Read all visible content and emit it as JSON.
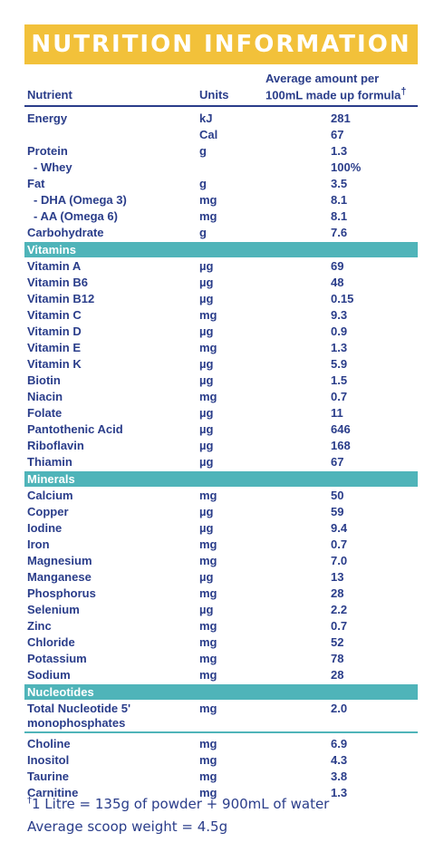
{
  "title": "NUTRITION INFORMATION",
  "header": {
    "nutrient": "Nutrient",
    "units": "Units",
    "amount_line1": "Average amount per",
    "amount_line2": "100mL made up formula",
    "amount_mark": "†"
  },
  "rows_main": [
    {
      "name": "Energy",
      "unit": "kJ",
      "value": "281"
    },
    {
      "name": "",
      "unit": "Cal",
      "value": "67"
    },
    {
      "name": "Protein",
      "unit": "g",
      "value": "1.3"
    },
    {
      "name": "- Whey",
      "unit": "",
      "value": "100%"
    },
    {
      "name": "Fat",
      "unit": "g",
      "value": "3.5"
    },
    {
      "name": "- DHA (Omega 3)",
      "unit": "mg",
      "value": "8.1"
    },
    {
      "name": "- AA (Omega 6)",
      "unit": "mg",
      "value": "8.1"
    },
    {
      "name": "Carbohydrate",
      "unit": "g",
      "value": "7.6"
    }
  ],
  "vitamins_label": "Vitamins",
  "vitamins": [
    {
      "name": "Vitamin A",
      "unit": "µg",
      "value": "69"
    },
    {
      "name": "Vitamin B6",
      "unit": "µg",
      "value": "48"
    },
    {
      "name": "Vitamin B12",
      "unit": "µg",
      "value": "0.15"
    },
    {
      "name": "Vitamin C",
      "unit": "mg",
      "value": "9.3"
    },
    {
      "name": "Vitamin D",
      "unit": "µg",
      "value": "0.9"
    },
    {
      "name": "Vitamin E",
      "unit": "mg",
      "value": "1.3"
    },
    {
      "name": "Vitamin K",
      "unit": "µg",
      "value": "5.9"
    },
    {
      "name": "Biotin",
      "unit": "µg",
      "value": "1.5"
    },
    {
      "name": "Niacin",
      "unit": "mg",
      "value": "0.7"
    },
    {
      "name": "Folate",
      "unit": "µg",
      "value": "11"
    },
    {
      "name": "Pantothenic Acid",
      "unit": "µg",
      "value": "646"
    },
    {
      "name": "Riboflavin",
      "unit": "µg",
      "value": "168"
    },
    {
      "name": "Thiamin",
      "unit": "µg",
      "value": "67"
    }
  ],
  "minerals_label": "Minerals",
  "minerals": [
    {
      "name": "Calcium",
      "unit": "mg",
      "value": "50"
    },
    {
      "name": "Copper",
      "unit": "µg",
      "value": "59"
    },
    {
      "name": "Iodine",
      "unit": "µg",
      "value": "9.4"
    },
    {
      "name": "Iron",
      "unit": "mg",
      "value": "0.7"
    },
    {
      "name": "Magnesium",
      "unit": "mg",
      "value": "7.0"
    },
    {
      "name": "Manganese",
      "unit": "µg",
      "value": "13"
    },
    {
      "name": "Phosphorus",
      "unit": "mg",
      "value": "28"
    },
    {
      "name": "Selenium",
      "unit": "µg",
      "value": "2.2"
    },
    {
      "name": "Zinc",
      "unit": "mg",
      "value": "0.7"
    },
    {
      "name": "Chloride",
      "unit": "mg",
      "value": "52"
    },
    {
      "name": "Potassium",
      "unit": "mg",
      "value": "78"
    },
    {
      "name": "Sodium",
      "unit": "mg",
      "value": "28"
    }
  ],
  "nucleotides_label": "Nucleotides",
  "nucleotides": {
    "name_line1": "Total Nucleotide 5'",
    "name_line2": "monophosphates",
    "unit": "mg",
    "value": "2.0"
  },
  "others": [
    {
      "name": "Choline",
      "unit": "mg",
      "value": "6.9"
    },
    {
      "name": "Inositol",
      "unit": "mg",
      "value": "4.3"
    },
    {
      "name": "Taurine",
      "unit": "mg",
      "value": "3.8"
    },
    {
      "name": "Carnitine",
      "unit": "mg",
      "value": "1.3"
    }
  ],
  "footnote": {
    "mark": "†",
    "line1": "1 Litre = 135g of powder + 900mL of water",
    "line2": "Average scoop weight = 4.5g"
  }
}
